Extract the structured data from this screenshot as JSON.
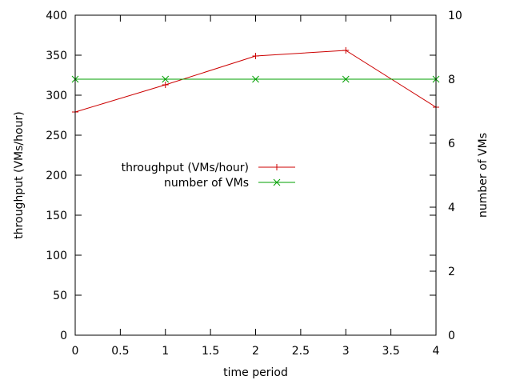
{
  "chart_data": {
    "type": "line",
    "title": "",
    "xlabel": "time period",
    "ylabel": "throughput (VMs/hour)",
    "y2label": "number of VMs",
    "xlim": [
      0,
      4
    ],
    "ylim": [
      0,
      400
    ],
    "y2lim": [
      0,
      10
    ],
    "xticks": [
      0,
      0.5,
      1,
      1.5,
      2,
      2.5,
      3,
      3.5,
      4
    ],
    "yticks": [
      0,
      50,
      100,
      150,
      200,
      250,
      300,
      350,
      400
    ],
    "y2ticks": [
      0,
      2,
      4,
      6,
      8,
      10
    ],
    "grid": false,
    "legend": "center-left",
    "series": [
      {
        "name": "throughput (VMs/hour)",
        "axis": "left",
        "color": "#cc0000",
        "marker": "plus",
        "x": [
          0,
          1,
          2,
          3,
          4
        ],
        "y": [
          279,
          313,
          349,
          356,
          285
        ]
      },
      {
        "name": "number of VMs",
        "axis": "right",
        "color": "#00a000",
        "marker": "cross",
        "x": [
          0,
          1,
          2,
          3,
          4
        ],
        "y": [
          8,
          8,
          8,
          8,
          8
        ]
      }
    ]
  }
}
